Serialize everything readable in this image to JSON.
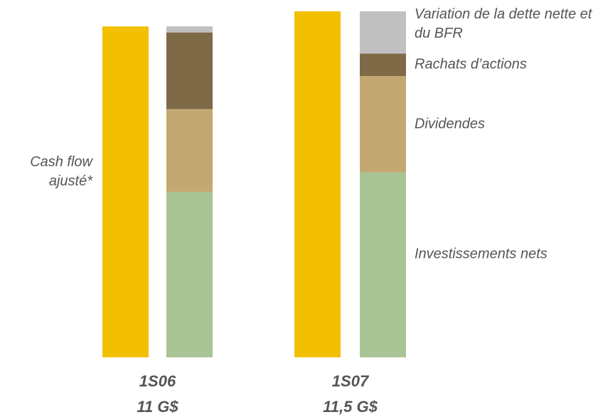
{
  "chart_data": {
    "type": "stacked-bar",
    "categories": [
      "1S06",
      "1S07"
    ],
    "sources": {
      "name": "Cash flow ajusté*",
      "color": "#f2c000",
      "values": [
        11,
        11.5
      ],
      "value_labels": [
        "11 G$",
        "11,5 G$"
      ]
    },
    "series": [
      {
        "name": "Investissements nets",
        "color": "#a8c495",
        "values": [
          5.5,
          6.15
        ]
      },
      {
        "name": "Dividendes",
        "color": "#c4a872",
        "values": [
          2.75,
          3.2
        ]
      },
      {
        "name": "Rachats d’actions",
        "color": "#7f6a47",
        "values": [
          2.55,
          0.75
        ]
      },
      {
        "name": "Variation de la dette nette et du BFR",
        "color": "#c0c0c0",
        "values": [
          0.2,
          1.4
        ]
      }
    ]
  }
}
